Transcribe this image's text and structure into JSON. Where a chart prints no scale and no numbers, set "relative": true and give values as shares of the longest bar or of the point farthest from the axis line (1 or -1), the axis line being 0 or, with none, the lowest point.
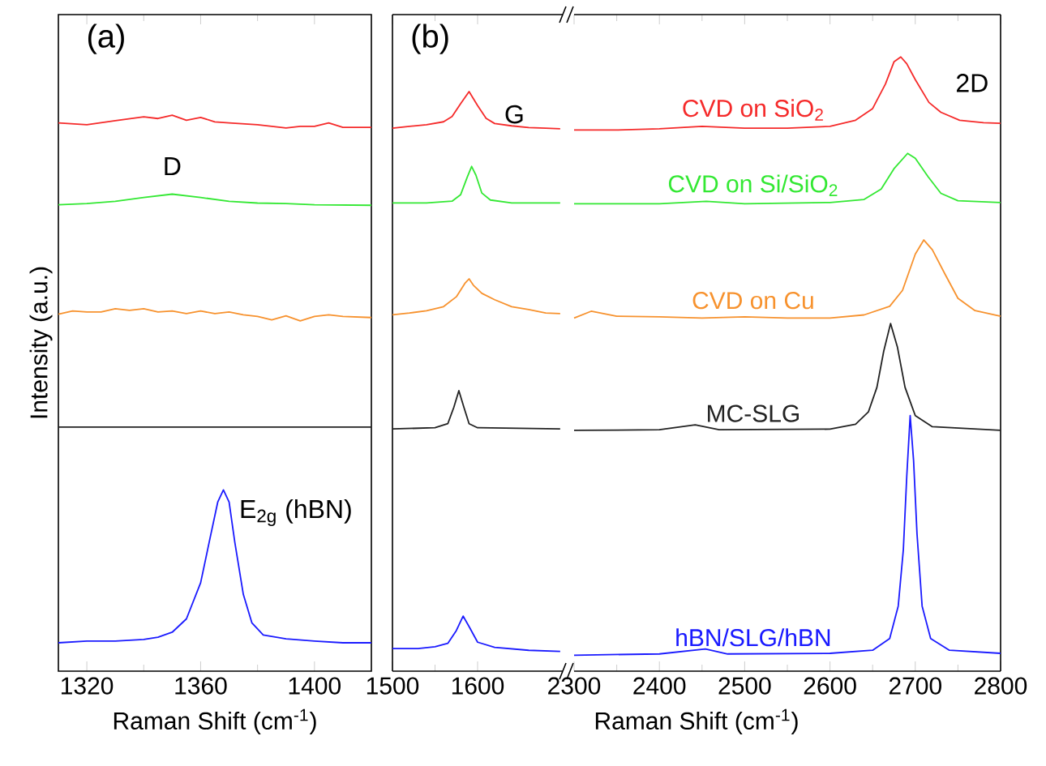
{
  "chart_data": [
    {
      "type": "line",
      "title": "(a)",
      "xlabel": "Raman Shift (cm$^{-1}$)",
      "ylabel": "Intensity (a.u.)",
      "relative": true,
      "tick_labels": "x",
      "xlim": [
        1310,
        1420
      ],
      "xticks": [
        1320,
        1360,
        1400
      ],
      "annotations": [
        {
          "text": "D",
          "x": 1350,
          "y": 0.858
        },
        {
          "text": "E$_{2g}$ (hBN)",
          "x": 1368,
          "y": 0.326
        }
      ],
      "series": [
        {
          "color": "#f52a2a",
          "x": [
            1310,
            1320,
            1330,
            1340,
            1345,
            1350,
            1355,
            1360,
            1365,
            1370,
            1380,
            1390,
            1395,
            1400,
            1405,
            1410,
            1420
          ],
          "values": [
            0.986,
            0.983,
            0.99,
            0.997,
            0.994,
            1.0,
            0.991,
            0.996,
            0.988,
            0.986,
            0.983,
            0.977,
            0.98,
            0.98,
            0.986,
            0.978,
            0.978
          ]
        },
        {
          "color": "#33e833",
          "x": [
            1310,
            1320,
            1330,
            1340,
            1350,
            1360,
            1370,
            1380,
            1390,
            1400,
            1420
          ],
          "values": [
            0.839,
            0.841,
            0.845,
            0.852,
            0.858,
            0.852,
            0.845,
            0.842,
            0.841,
            0.839,
            0.838
          ]
        },
        {
          "color": "#f7922e",
          "x": [
            1310,
            1315,
            1320,
            1325,
            1330,
            1335,
            1340,
            1345,
            1350,
            1355,
            1360,
            1365,
            1370,
            1375,
            1380,
            1385,
            1390,
            1395,
            1400,
            1405,
            1410,
            1420
          ],
          "values": [
            0.642,
            0.648,
            0.646,
            0.646,
            0.652,
            0.649,
            0.652,
            0.646,
            0.648,
            0.643,
            0.648,
            0.643,
            0.646,
            0.641,
            0.638,
            0.632,
            0.639,
            0.63,
            0.638,
            0.641,
            0.638,
            0.636
          ]
        },
        {
          "color": "#222222",
          "x": [
            1310,
            1365,
            1420
          ],
          "values": [
            0.439,
            0.439,
            0.439
          ]
        },
        {
          "color": "#1a1aff",
          "x": [
            1310,
            1320,
            1330,
            1340,
            1345,
            1350,
            1355,
            1360,
            1363,
            1366,
            1368,
            1370,
            1372,
            1375,
            1378,
            1382,
            1390,
            1400,
            1410,
            1420
          ],
          "values": [
            0.051,
            0.054,
            0.054,
            0.057,
            0.061,
            0.07,
            0.094,
            0.159,
            0.232,
            0.304,
            0.326,
            0.304,
            0.232,
            0.138,
            0.087,
            0.065,
            0.058,
            0.054,
            0.051,
            0.051
          ]
        }
      ]
    },
    {
      "type": "line",
      "title": "(b)",
      "relative": true,
      "tick_labels": "x",
      "xlim": [
        1500,
        1700
      ],
      "xticks": [
        1500,
        1600
      ],
      "annotations": [
        {
          "text": "G",
          "x": 1590,
          "y": 1.0
        }
      ],
      "series": [
        {
          "color": "#f52a2a",
          "x": [
            1500,
            1520,
            1540,
            1560,
            1570,
            1580,
            1590,
            1600,
            1610,
            1620,
            1640,
            1660,
            1680,
            1697
          ],
          "values": [
            0.937,
            0.94,
            0.943,
            0.948,
            0.957,
            0.979,
            1.0,
            0.976,
            0.954,
            0.945,
            0.941,
            0.938,
            0.937,
            0.936
          ]
        },
        {
          "color": "#33e833",
          "x": [
            1500,
            1540,
            1570,
            1580,
            1588,
            1593,
            1598,
            1605,
            1615,
            1640,
            1697
          ],
          "values": [
            0.808,
            0.808,
            0.811,
            0.822,
            0.853,
            0.871,
            0.856,
            0.825,
            0.813,
            0.808,
            0.808
          ]
        },
        {
          "color": "#f7922e",
          "x": [
            1500,
            1520,
            1540,
            1560,
            1575,
            1585,
            1590,
            1595,
            1605,
            1620,
            1640,
            1660,
            1680,
            1697
          ],
          "values": [
            0.615,
            0.618,
            0.622,
            0.629,
            0.646,
            0.669,
            0.677,
            0.666,
            0.652,
            0.641,
            0.629,
            0.624,
            0.618,
            0.617
          ]
        },
        {
          "color": "#222222",
          "x": [
            1500,
            1550,
            1565,
            1572,
            1578,
            1584,
            1590,
            1600,
            1697
          ],
          "values": [
            0.418,
            0.42,
            0.427,
            0.455,
            0.484,
            0.455,
            0.427,
            0.42,
            0.418
          ]
        },
        {
          "color": "#1a1aff",
          "x": [
            1500,
            1530,
            1550,
            1565,
            1575,
            1583,
            1590,
            1600,
            1620,
            1660,
            1697
          ],
          "values": [
            0.039,
            0.039,
            0.042,
            0.048,
            0.07,
            0.095,
            0.077,
            0.05,
            0.041,
            0.036,
            0.034
          ]
        }
      ]
    },
    {
      "type": "line",
      "xlabel": "Raman Shift (cm$^{-1}$)",
      "relative": true,
      "tick_labels": "x",
      "xlim": [
        2300,
        2800
      ],
      "xticks": [
        2300,
        2400,
        2500,
        2600,
        2700,
        2800
      ],
      "annotations": [
        {
          "text": "2D",
          "x": 2683,
          "y": 1.0
        }
      ],
      "series": [
        {
          "name": "CVD on SiO$_{2}$",
          "color": "#f52a2a",
          "x": [
            2300,
            2350,
            2400,
            2450,
            2500,
            2550,
            2600,
            2630,
            2650,
            2665,
            2675,
            2683,
            2690,
            2700,
            2716,
            2730,
            2752,
            2780,
            2800
          ],
          "values": [
            0.881,
            0.881,
            0.883,
            0.887,
            0.884,
            0.884,
            0.887,
            0.897,
            0.916,
            0.956,
            0.992,
            1.0,
            0.989,
            0.963,
            0.926,
            0.91,
            0.897,
            0.893,
            0.892
          ]
        },
        {
          "name": "CVD on Si/SiO$_{2}$",
          "color": "#33e833",
          "x": [
            2300,
            2400,
            2455,
            2500,
            2600,
            2640,
            2660,
            2675,
            2691,
            2700,
            2715,
            2730,
            2750,
            2800
          ],
          "values": [
            0.761,
            0.761,
            0.765,
            0.761,
            0.763,
            0.768,
            0.785,
            0.818,
            0.843,
            0.835,
            0.805,
            0.778,
            0.766,
            0.763
          ]
        },
        {
          "name": "CVD on Cu",
          "color": "#f7922e",
          "x": [
            2300,
            2320,
            2350,
            2400,
            2450,
            2500,
            2550,
            2600,
            2640,
            2670,
            2685,
            2700,
            2710,
            2720,
            2735,
            2750,
            2770,
            2800
          ],
          "values": [
            0.575,
            0.586,
            0.578,
            0.577,
            0.575,
            0.577,
            0.575,
            0.575,
            0.58,
            0.594,
            0.62,
            0.679,
            0.702,
            0.686,
            0.646,
            0.607,
            0.587,
            0.578
          ]
        },
        {
          "name": "MC-SLG",
          "color": "#222222",
          "x": [
            2300,
            2400,
            2442,
            2470,
            2600,
            2630,
            2645,
            2655,
            2663,
            2671,
            2679,
            2688,
            2700,
            2720,
            2800
          ],
          "values": [
            0.392,
            0.393,
            0.401,
            0.393,
            0.394,
            0.402,
            0.422,
            0.462,
            0.521,
            0.566,
            0.528,
            0.462,
            0.416,
            0.398,
            0.392
          ]
        },
        {
          "name": "hBN/SLG/hBN",
          "color": "#1a1aff",
          "x": [
            2300,
            2400,
            2454,
            2480,
            2600,
            2650,
            2670,
            2680,
            2686,
            2690,
            2694,
            2698,
            2702,
            2708,
            2718,
            2740,
            2800
          ],
          "values": [
            0.026,
            0.028,
            0.036,
            0.028,
            0.029,
            0.034,
            0.053,
            0.106,
            0.198,
            0.317,
            0.416,
            0.343,
            0.224,
            0.106,
            0.053,
            0.034,
            0.029
          ]
        }
      ]
    }
  ]
}
